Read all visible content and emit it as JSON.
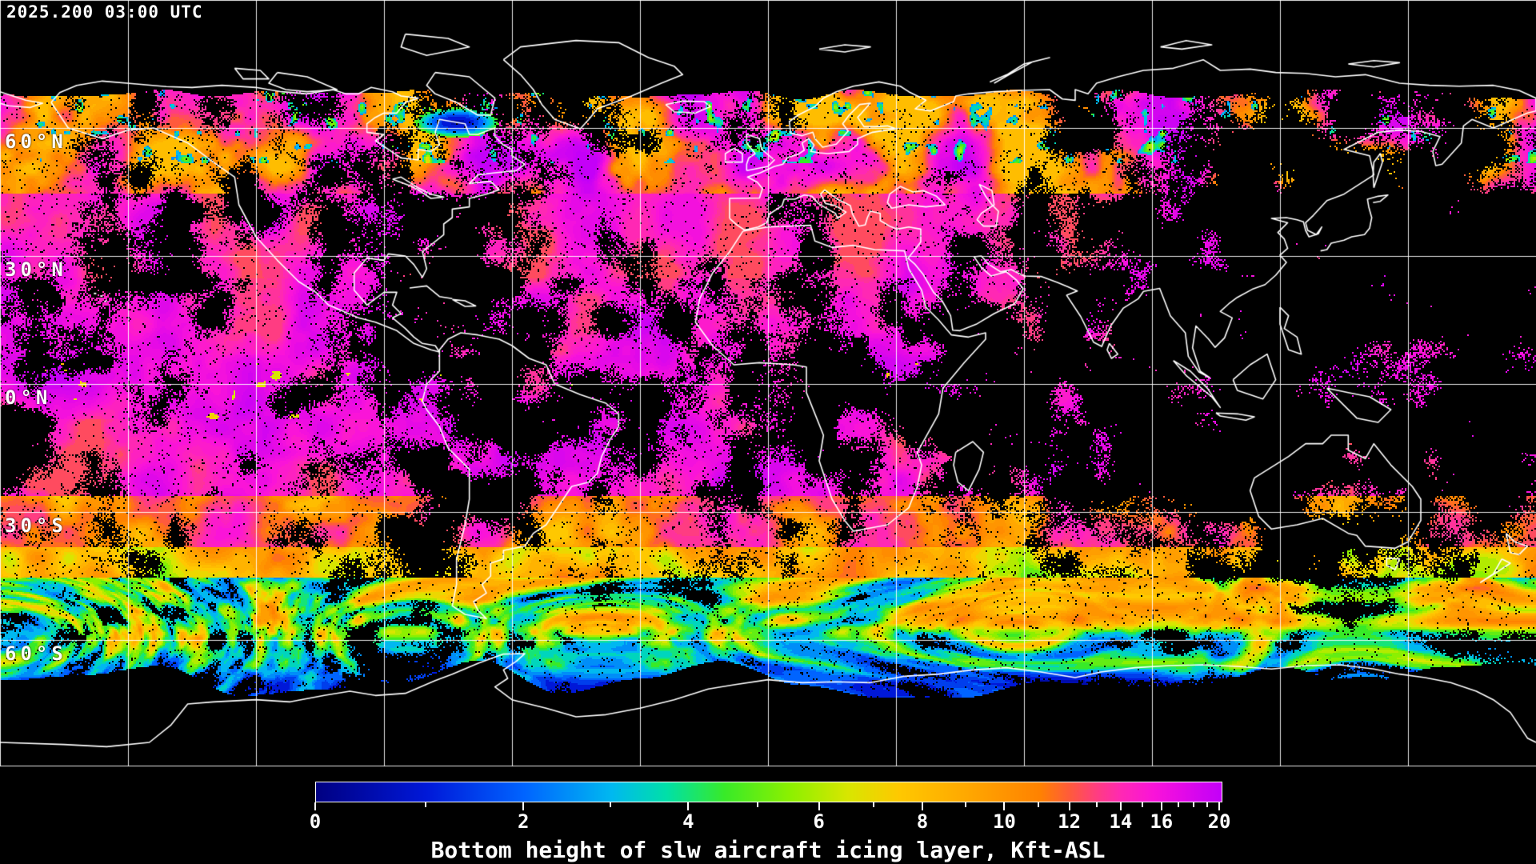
{
  "header": {
    "timestamp": "2025.200 03:00 UTC"
  },
  "map": {
    "background": "#000000",
    "graticule": {
      "lon_step_deg": 30,
      "lat_step_deg": 30,
      "color": "#ffffff"
    },
    "coastline_color": "#ffffff",
    "data_cutoff_north_lat": 69.3,
    "latitude_labels": [
      {
        "text": "60°N",
        "lat": 60
      },
      {
        "text": "30°N",
        "lat": 30
      },
      {
        "text": "0°N",
        "lat": 0
      },
      {
        "text": "30°S",
        "lat": -30
      },
      {
        "text": "60°S",
        "lat": -60
      }
    ]
  },
  "colorbar": {
    "title": "Bottom height of slw aircraft icing layer, Kft-ASL",
    "units": "Kft-ASL",
    "min": 0,
    "max": 20,
    "labeled_ticks": [
      0,
      2,
      4,
      6,
      8,
      10,
      12,
      14,
      16,
      20
    ],
    "minor_tick_step": 1,
    "scale": {
      "type": "exponential",
      "base": 0.89,
      "norm": 1.1058
    },
    "stops": [
      {
        "v": 0,
        "c": "#000082"
      },
      {
        "v": 1,
        "c": "#0018d8"
      },
      {
        "v": 2,
        "c": "#0064ff"
      },
      {
        "v": 3,
        "c": "#00b8f0"
      },
      {
        "v": 3.7,
        "c": "#00e0a8"
      },
      {
        "v": 4.5,
        "c": "#38ea28"
      },
      {
        "v": 5.5,
        "c": "#8cf000"
      },
      {
        "v": 6.5,
        "c": "#d8e600"
      },
      {
        "v": 7.5,
        "c": "#ffc800"
      },
      {
        "v": 9,
        "c": "#ffa800"
      },
      {
        "v": 11,
        "c": "#ff8200"
      },
      {
        "v": 12,
        "c": "#ff5a3c"
      },
      {
        "v": 13,
        "c": "#ff3c82"
      },
      {
        "v": 14,
        "c": "#ff28b4"
      },
      {
        "v": 15.5,
        "c": "#fa14d8"
      },
      {
        "v": 17,
        "c": "#e60ae6"
      },
      {
        "v": 18.5,
        "c": "#d205f0"
      },
      {
        "v": 20,
        "c": "#c400f8"
      }
    ]
  }
}
